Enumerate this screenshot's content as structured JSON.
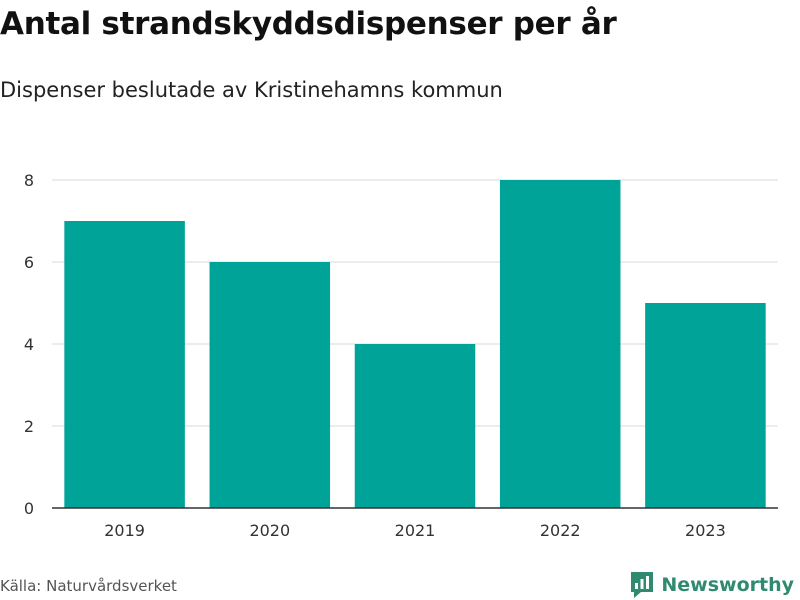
{
  "header": {
    "title": "Antal strandskyddsdispenser per år",
    "subtitle": "Dispenser beslutade av Kristinehamns kommun"
  },
  "footer": {
    "source": "Källa: Naturvårdsverket",
    "brand": "Newsworthy"
  },
  "colors": {
    "bar": "#00a398",
    "grid": "#d9d9d9",
    "axis": "#333333",
    "brand": "#2f8a70"
  },
  "chart_data": {
    "type": "bar",
    "title": "Antal strandskyddsdispenser per år",
    "subtitle": "Dispenser beslutade av Kristinehamns kommun",
    "categories": [
      "2019",
      "2020",
      "2021",
      "2022",
      "2023"
    ],
    "values": [
      7,
      6,
      4,
      8,
      5
    ],
    "xlabel": "",
    "ylabel": "",
    "ylim": [
      0,
      8
    ],
    "yticks": [
      0,
      2,
      4,
      6,
      8
    ],
    "grid": true,
    "legend": "none"
  }
}
